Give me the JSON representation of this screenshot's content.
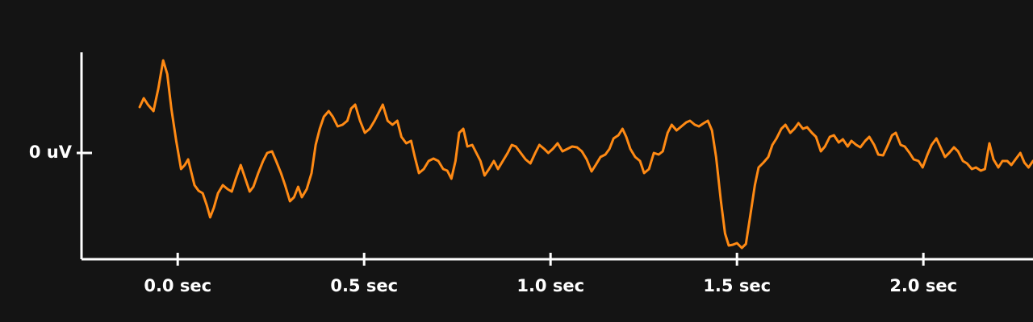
{
  "chart_data": {
    "type": "line",
    "color": "#ff8a14",
    "x": [
      -0.102,
      -0.091,
      -0.08,
      -0.065,
      -0.052,
      -0.039,
      -0.028,
      -0.017,
      -0.004,
      0.009,
      0.019,
      0.028,
      0.037,
      0.045,
      0.056,
      0.067,
      0.078,
      0.087,
      0.097,
      0.108,
      0.121,
      0.134,
      0.145,
      0.156,
      0.169,
      0.18,
      0.193,
      0.203,
      0.216,
      0.229,
      0.24,
      0.253,
      0.264,
      0.277,
      0.288,
      0.301,
      0.312,
      0.323,
      0.333,
      0.346,
      0.359,
      0.37,
      0.381,
      0.392,
      0.405,
      0.416,
      0.429,
      0.442,
      0.455,
      0.465,
      0.476,
      0.489,
      0.502,
      0.515,
      0.528,
      0.539,
      0.55,
      0.563,
      0.576,
      0.589,
      0.6,
      0.613,
      0.626,
      0.636,
      0.647,
      0.66,
      0.673,
      0.686,
      0.699,
      0.712,
      0.723,
      0.734,
      0.745,
      0.755,
      0.766,
      0.777,
      0.79,
      0.801,
      0.812,
      0.823,
      0.835,
      0.848,
      0.859,
      0.872,
      0.885,
      0.896,
      0.907,
      0.92,
      0.933,
      0.946,
      0.959,
      0.97,
      0.983,
      0.994,
      1.006,
      1.019,
      1.032,
      1.045,
      1.058,
      1.071,
      1.084,
      1.097,
      1.11,
      1.121,
      1.134,
      1.147,
      1.158,
      1.169,
      1.182,
      1.193,
      1.203,
      1.214,
      1.227,
      1.24,
      1.251,
      1.264,
      1.277,
      1.29,
      1.301,
      1.314,
      1.325,
      1.338,
      1.351,
      1.364,
      1.374,
      1.387,
      1.398,
      1.411,
      1.422,
      1.433,
      1.444,
      1.457,
      1.468,
      1.478,
      1.489,
      1.5,
      1.513,
      1.524,
      1.535,
      1.548,
      1.558,
      1.571,
      1.584,
      1.595,
      1.606,
      1.619,
      1.63,
      1.643,
      1.654,
      1.665,
      1.677,
      1.688,
      1.701,
      1.712,
      1.725,
      1.736,
      1.749,
      1.76,
      1.773,
      1.784,
      1.797,
      1.807,
      1.82,
      1.831,
      1.844,
      1.855,
      1.868,
      1.879,
      1.892,
      1.903,
      1.916,
      1.926,
      1.939,
      1.95,
      1.963,
      1.974,
      1.987,
      1.998,
      2.011,
      2.022,
      2.035,
      2.045,
      2.058,
      2.069,
      2.082,
      2.093,
      2.106,
      2.117,
      2.13,
      2.141,
      2.154,
      2.165,
      2.177,
      2.188,
      2.201,
      2.212,
      2.225,
      2.236,
      2.247,
      2.26,
      2.271,
      2.282,
      2.294
    ],
    "values": [
      5.7,
      6.8,
      6.0,
      5.2,
      8.0,
      11.5,
      9.8,
      5.5,
      1.5,
      -2.0,
      -1.5,
      -0.8,
      -2.5,
      -4.0,
      -4.7,
      -5.0,
      -6.5,
      -8.0,
      -6.8,
      -5.0,
      -4.0,
      -4.5,
      -4.8,
      -3.2,
      -1.5,
      -3.0,
      -4.8,
      -4.2,
      -2.5,
      -1.0,
      0.0,
      0.2,
      -1.0,
      -2.5,
      -4.0,
      -6.0,
      -5.5,
      -4.2,
      -5.5,
      -4.5,
      -2.5,
      1.0,
      3.0,
      4.5,
      5.2,
      4.5,
      3.3,
      3.5,
      4.0,
      5.5,
      6.0,
      4.0,
      2.5,
      3.0,
      4.0,
      5.0,
      6.0,
      4.0,
      3.5,
      4.0,
      2.0,
      1.2,
      1.5,
      -0.5,
      -2.5,
      -2.0,
      -1.0,
      -0.7,
      -1.0,
      -2.0,
      -2.2,
      -3.2,
      -1.0,
      2.5,
      3.0,
      0.8,
      1.0,
      0.0,
      -1.0,
      -2.8,
      -2.0,
      -1.0,
      -2.0,
      -1.0,
      0.0,
      1.0,
      0.8,
      0.0,
      -0.8,
      -1.3,
      0.0,
      1.0,
      0.5,
      0.0,
      0.5,
      1.2,
      0.2,
      0.5,
      0.8,
      0.7,
      0.2,
      -0.8,
      -2.3,
      -1.5,
      -0.5,
      -0.2,
      0.5,
      1.8,
      2.2,
      3.0,
      2.0,
      0.5,
      -0.5,
      -1.0,
      -2.5,
      -2.0,
      0.0,
      -0.2,
      0.2,
      2.5,
      3.5,
      2.8,
      3.3,
      3.8,
      4.0,
      3.5,
      3.3,
      3.7,
      4.0,
      2.8,
      -0.5,
      -6.0,
      -10.0,
      -11.5,
      -11.4,
      -11.2,
      -11.8,
      -11.3,
      -8.0,
      -4.0,
      -1.8,
      -1.2,
      -0.5,
      1.0,
      1.8,
      3.0,
      3.5,
      2.5,
      3.0,
      3.7,
      3.0,
      3.2,
      2.5,
      2.0,
      0.2,
      0.8,
      2.0,
      2.2,
      1.3,
      1.7,
      0.8,
      1.5,
      1.0,
      0.7,
      1.5,
      2.0,
      1.0,
      -0.2,
      -0.3,
      0.8,
      2.2,
      2.5,
      1.0,
      0.8,
      0.0,
      -0.8,
      -1.0,
      -1.8,
      -0.2,
      1.0,
      1.8,
      0.8,
      -0.5,
      0.0,
      0.7,
      0.2,
      -1.0,
      -1.3,
      -2.0,
      -1.8,
      -2.2,
      -2.0,
      1.2,
      -0.8,
      -1.8,
      -1.0,
      -1.0,
      -1.5,
      -0.8,
      0.0,
      -1.2,
      -1.8,
      -1.0
    ],
    "xlim": [
      -0.258,
      2.294
    ],
    "ylim": [
      -13.2,
      12.5
    ],
    "xticks": [
      {
        "value": 0,
        "label": "0.0 sec"
      },
      {
        "value": 0.5,
        "label": "0.5 sec"
      },
      {
        "value": 1,
        "label": "1.0 sec"
      },
      {
        "value": 1.5,
        "label": "1.5 sec"
      },
      {
        "value": 2,
        "label": "2.0 sec"
      }
    ],
    "yticks": [
      {
        "value": 0,
        "label": "0 uV"
      }
    ]
  }
}
